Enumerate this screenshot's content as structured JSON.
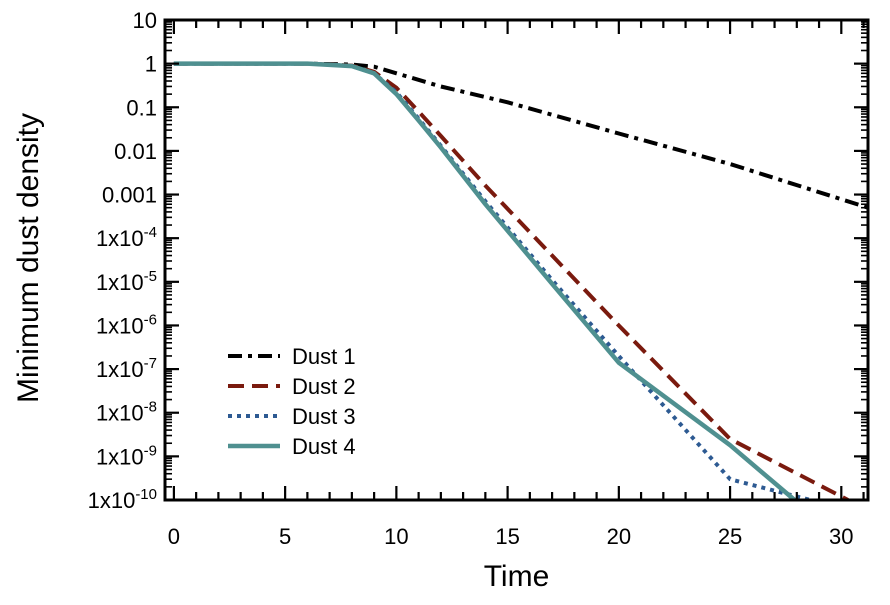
{
  "chart_data": {
    "type": "line",
    "title": "",
    "xlabel": "Time",
    "ylabel": "Minimum dust density",
    "xlim": [
      -0.4,
      31.2
    ],
    "ylim": [
      1e-10,
      10
    ],
    "yscale": "log",
    "x_ticks": [
      {
        "value": 0,
        "label": "0"
      },
      {
        "value": 5,
        "label": "5"
      },
      {
        "value": 10,
        "label": "10"
      },
      {
        "value": 15,
        "label": "15"
      },
      {
        "value": 20,
        "label": "20"
      },
      {
        "value": 25,
        "label": "25"
      },
      {
        "value": 30,
        "label": "30"
      }
    ],
    "y_ticks": [
      {
        "value": 10,
        "label": "10"
      },
      {
        "value": 1,
        "label": "1"
      },
      {
        "value": 0.1,
        "label": "0.1"
      },
      {
        "value": 0.01,
        "label": "0.01"
      },
      {
        "value": 0.001,
        "label": "0.001"
      },
      {
        "value": 0.0001,
        "mantissa": "1x10",
        "exp": "-4"
      },
      {
        "value": 1e-05,
        "mantissa": "1x10",
        "exp": "-5"
      },
      {
        "value": 1e-06,
        "mantissa": "1x10",
        "exp": "-6"
      },
      {
        "value": 1e-07,
        "mantissa": "1x10",
        "exp": "-7"
      },
      {
        "value": 1e-08,
        "mantissa": "1x10",
        "exp": "-8"
      },
      {
        "value": 1e-09,
        "mantissa": "1x10",
        "exp": "-9"
      },
      {
        "value": 1e-10,
        "mantissa": "1x10",
        "exp": "-10"
      }
    ],
    "grid": false,
    "legend_position": "lower-left",
    "series": [
      {
        "name": "Dust 1",
        "color": "#000000",
        "style": "dashdot",
        "x": [
          0,
          6,
          8,
          9,
          10,
          12,
          15,
          20,
          25,
          31.2
        ],
        "y": [
          1,
          1,
          0.95,
          0.85,
          0.6,
          0.3,
          0.13,
          0.025,
          0.005,
          0.0005
        ]
      },
      {
        "name": "Dust 2",
        "color": "#7a1a0e",
        "style": "dashed",
        "x": [
          0,
          6,
          8,
          9,
          10,
          11,
          12,
          14,
          17,
          20,
          25,
          30.3
        ],
        "y": [
          1,
          1,
          0.9,
          0.65,
          0.28,
          0.08,
          0.022,
          0.0016,
          4e-05,
          1e-06,
          2.5e-09,
          1e-10
        ]
      },
      {
        "name": "Dust 3",
        "color": "#2d5a92",
        "style": "dotted",
        "x": [
          0,
          6,
          8,
          9,
          10,
          11,
          12,
          14,
          17,
          20,
          25,
          28.6
        ],
        "y": [
          1,
          1,
          0.88,
          0.6,
          0.22,
          0.055,
          0.013,
          0.0007,
          1.1e-05,
          2e-07,
          3e-10,
          1e-10
        ]
      },
      {
        "name": "Dust 4",
        "color": "#4f9090",
        "style": "solid",
        "x": [
          0,
          6,
          8,
          9,
          10,
          11,
          12,
          14,
          17,
          20,
          25,
          27.9
        ],
        "y": [
          1,
          1,
          0.88,
          0.6,
          0.2,
          0.05,
          0.012,
          0.0006,
          9e-06,
          1.4e-07,
          1.8e-09,
          1e-10
        ]
      }
    ]
  },
  "colors": {
    "axis": "#000000",
    "background": "#ffffff"
  }
}
